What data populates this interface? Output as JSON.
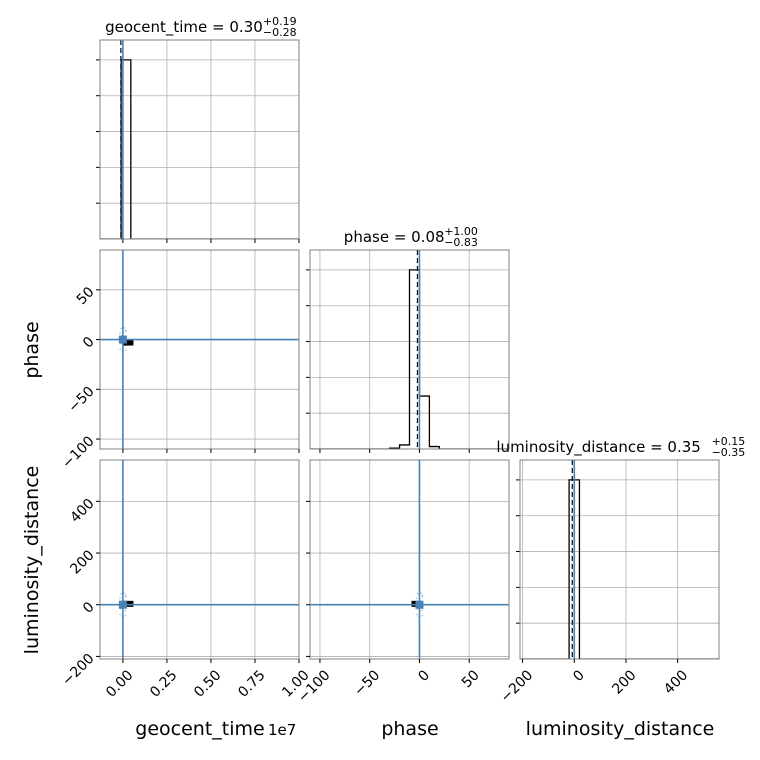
{
  "chart_data": {
    "type": "corner",
    "parameters": [
      "geocent_time",
      "phase",
      "luminosity_distance"
    ],
    "axis_labels": [
      "geocent_time",
      "phase",
      "luminosity_distance"
    ],
    "x_offset_label": "1e7",
    "grid": true,
    "truth_color": "#4682b4",
    "line_color": "#000000",
    "titles": [
      {
        "name": "geocent_time",
        "median": "0.30",
        "plus": "+0.19",
        "minus": "−0.28"
      },
      {
        "name": "phase",
        "median": "0.08",
        "plus": "+1.00",
        "minus": "−0.83"
      },
      {
        "name": "luminosity_distance",
        "median": "0.35",
        "plus": "+0.15",
        "minus": "−0.35"
      }
    ],
    "ranges": {
      "geocent_time": [
        -1300000,
        10000000
      ],
      "phase": [
        -110,
        90
      ],
      "luminosity_distance": [
        -210,
        560
      ]
    },
    "ticks": {
      "geocent_time": {
        "values": [
          0,
          2500000,
          5000000,
          7500000,
          10000000
        ],
        "labels": [
          "0.00",
          "0.25",
          "0.50",
          "0.75",
          "1.00"
        ]
      },
      "phase": {
        "values": [
          -100,
          -50,
          0,
          50
        ],
        "labels": [
          "−100",
          "−50",
          "0",
          "50"
        ]
      },
      "luminosity_distance": {
        "values": [
          -200,
          0,
          200,
          400
        ],
        "labels": [
          "−200",
          "0",
          "200",
          "400"
        ]
      }
    },
    "truths": {
      "geocent_time": 0,
      "phase": 0,
      "luminosity_distance": 0
    },
    "hist_1d": {
      "geocent_time": {
        "edges": [
          -100000,
          450000
        ],
        "counts": [
          1.0
        ]
      },
      "phase": {
        "edges": [
          -30,
          -20,
          -10,
          0,
          10,
          20
        ],
        "counts": [
          0.004,
          0.02,
          0.88,
          0.26,
          0.012
        ]
      },
      "luminosity_distance": {
        "edges": [
          -20,
          0,
          20
        ],
        "counts": [
          1.0,
          1.0
        ]
      }
    },
    "medians": {
      "geocent_time": 0.3,
      "phase": 0.08,
      "luminosity_distance": 0.35
    },
    "hist_2d_blocks": [
      {
        "x": "geocent_time",
        "y": "phase",
        "x_range": [
          0,
          600000
        ],
        "y_range": [
          -6,
          0
        ]
      },
      {
        "x": "geocent_time",
        "y": "luminosity_distance",
        "x_range": [
          0,
          600000
        ],
        "y_range": [
          0,
          15
        ]
      },
      {
        "x": "phase",
        "y": "luminosity_distance",
        "x_range": [
          -8,
          0
        ],
        "y_range": [
          0,
          15
        ]
      }
    ],
    "truth_markers": [
      {
        "x": "geocent_time",
        "y": "phase",
        "x_value": 0,
        "y_value": 0
      },
      {
        "x": "geocent_time",
        "y": "luminosity_distance",
        "x_value": 0,
        "y_value": 0
      },
      {
        "x": "phase",
        "y": "luminosity_distance",
        "x_value": 0,
        "y_value": 0
      }
    ]
  }
}
